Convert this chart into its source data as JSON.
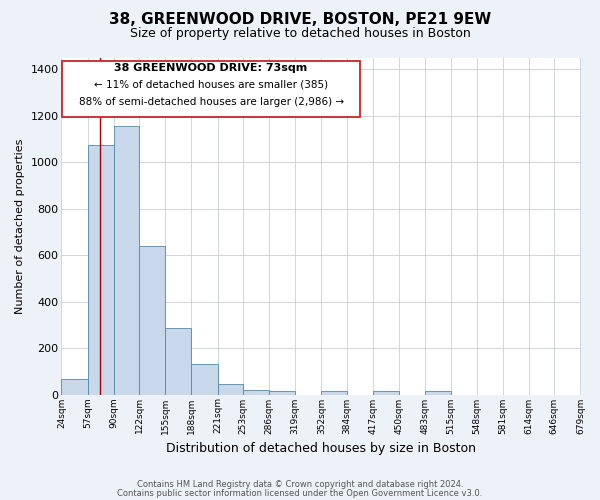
{
  "title": "38, GREENWOOD DRIVE, BOSTON, PE21 9EW",
  "subtitle": "Size of property relative to detached houses in Boston",
  "xlabel": "Distribution of detached houses by size in Boston",
  "ylabel": "Number of detached properties",
  "bar_color": "#c8d8ea",
  "bar_edge_color": "#5588aa",
  "annotation_line_color": "#aa0000",
  "annotation_box_edge_color": "#cc2222",
  "annotation_text_line1": "38 GREENWOOD DRIVE: 73sqm",
  "annotation_text_line2": "← 11% of detached houses are smaller (385)",
  "annotation_text_line3": "88% of semi-detached houses are larger (2,986) →",
  "property_line_x": 73,
  "ylim": [
    0,
    1450
  ],
  "yticks": [
    0,
    200,
    400,
    600,
    800,
    1000,
    1200,
    1400
  ],
  "footer_line1": "Contains HM Land Registry data © Crown copyright and database right 2024.",
  "footer_line2": "Contains public sector information licensed under the Open Government Licence v3.0.",
  "bin_edges": [
    24,
    57,
    90,
    122,
    155,
    188,
    221,
    253,
    286,
    319,
    352,
    384,
    417,
    450,
    483,
    515,
    548,
    581,
    614,
    646,
    679
  ],
  "bin_heights": [
    65,
    1075,
    1155,
    638,
    285,
    130,
    47,
    20,
    13,
    0,
    13,
    0,
    13,
    0,
    13,
    0,
    0,
    0,
    0,
    0
  ],
  "xtick_labels": [
    "24sqm",
    "57sqm",
    "90sqm",
    "122sqm",
    "155sqm",
    "188sqm",
    "221sqm",
    "253sqm",
    "286sqm",
    "319sqm",
    "352sqm",
    "384sqm",
    "417sqm",
    "450sqm",
    "483sqm",
    "515sqm",
    "548sqm",
    "581sqm",
    "614sqm",
    "646sqm",
    "679sqm"
  ],
  "background_color": "#edf2f8",
  "plot_background_color": "#ffffff",
  "grid_color": "#c8d0dc",
  "title_fontsize": 11,
  "subtitle_fontsize": 9,
  "ylabel_fontsize": 8,
  "xlabel_fontsize": 9,
  "ytick_fontsize": 8,
  "xtick_fontsize": 6.5,
  "footer_fontsize": 6,
  "footer_color": "#555555"
}
